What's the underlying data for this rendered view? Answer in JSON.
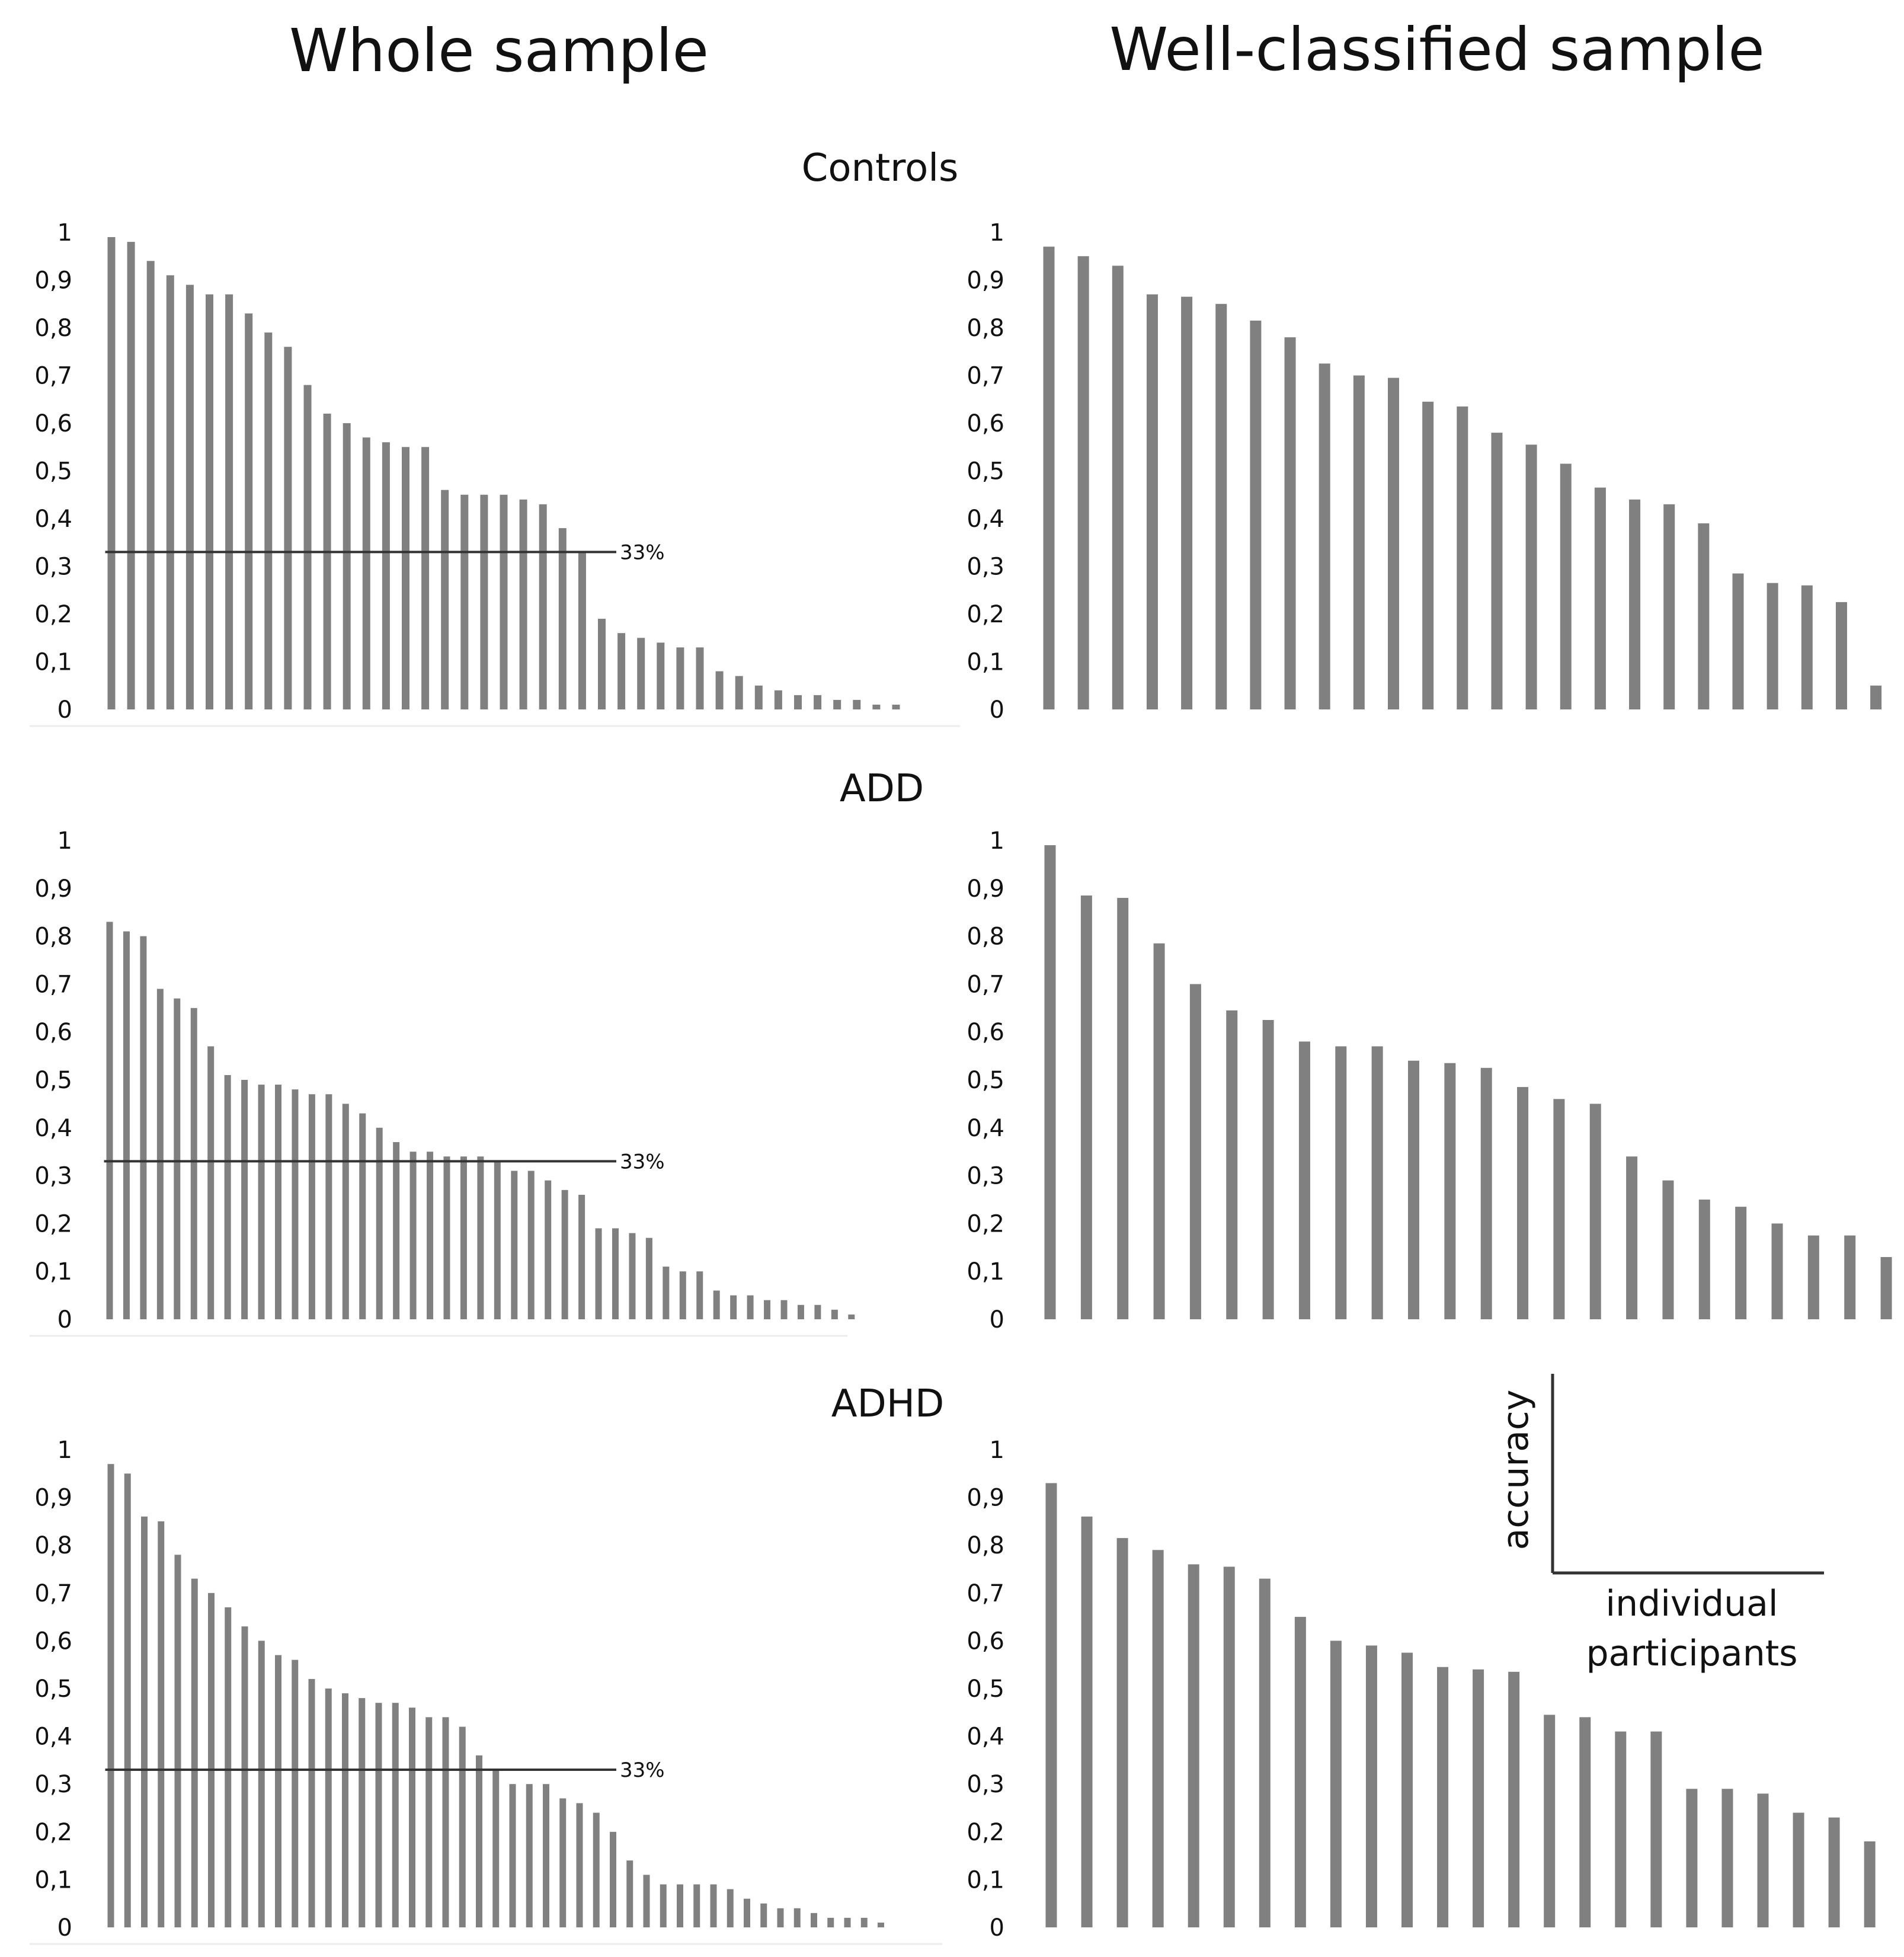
{
  "column_titles": [
    "Whole sample",
    "Well-classified sample"
  ],
  "row_titles": [
    "Controls",
    "ADD",
    "ADHD"
  ],
  "y_ticks": [
    "0",
    "0,1",
    "0,2",
    "0,3",
    "0,4",
    "0,5",
    "0,6",
    "0,7",
    "0,8",
    "0,9",
    "1"
  ],
  "legend": {
    "y_label": "accuracy",
    "x_label_line1": "individual",
    "x_label_line2": "participants"
  },
  "colors": {
    "bar": "#808080",
    "axis": "#333333"
  },
  "chart_data": [
    {
      "type": "bar",
      "title": "Controls",
      "panel": "Whole sample",
      "ylim": [
        0,
        1
      ],
      "reference_line": {
        "value": 0.33,
        "label": "33%"
      },
      "values": [
        0.99,
        0.98,
        0.94,
        0.91,
        0.89,
        0.87,
        0.87,
        0.83,
        0.79,
        0.76,
        0.68,
        0.62,
        0.6,
        0.57,
        0.56,
        0.55,
        0.55,
        0.46,
        0.45,
        0.45,
        0.45,
        0.44,
        0.43,
        0.38,
        0.33,
        0.19,
        0.16,
        0.15,
        0.14,
        0.13,
        0.13,
        0.08,
        0.07,
        0.05,
        0.04,
        0.03,
        0.03,
        0.02,
        0.02,
        0.01,
        0.01
      ]
    },
    {
      "type": "bar",
      "title": "Controls",
      "panel": "Well-classified sample",
      "ylim": [
        0,
        1
      ],
      "values": [
        0.97,
        0.95,
        0.93,
        0.87,
        0.865,
        0.85,
        0.815,
        0.78,
        0.725,
        0.7,
        0.695,
        0.645,
        0.635,
        0.58,
        0.555,
        0.515,
        0.465,
        0.44,
        0.43,
        0.39,
        0.285,
        0.265,
        0.26,
        0.225,
        0.05
      ]
    },
    {
      "type": "bar",
      "title": "ADD",
      "panel": "Whole sample",
      "ylim": [
        0,
        1
      ],
      "reference_line": {
        "value": 0.33,
        "label": "33%"
      },
      "values": [
        0.83,
        0.81,
        0.8,
        0.69,
        0.67,
        0.65,
        0.57,
        0.51,
        0.5,
        0.49,
        0.49,
        0.48,
        0.47,
        0.47,
        0.45,
        0.43,
        0.4,
        0.37,
        0.35,
        0.35,
        0.34,
        0.34,
        0.34,
        0.33,
        0.31,
        0.31,
        0.29,
        0.27,
        0.26,
        0.19,
        0.19,
        0.18,
        0.17,
        0.11,
        0.1,
        0.1,
        0.06,
        0.05,
        0.05,
        0.04,
        0.04,
        0.03,
        0.03,
        0.02,
        0.01
      ]
    },
    {
      "type": "bar",
      "title": "ADD",
      "panel": "Well-classified sample",
      "ylim": [
        0,
        1
      ],
      "values": [
        0.99,
        0.885,
        0.88,
        0.785,
        0.7,
        0.645,
        0.625,
        0.58,
        0.57,
        0.57,
        0.54,
        0.535,
        0.525,
        0.485,
        0.46,
        0.45,
        0.34,
        0.29,
        0.25,
        0.235,
        0.2,
        0.175,
        0.175,
        0.13
      ]
    },
    {
      "type": "bar",
      "title": "ADHD",
      "panel": "Whole sample",
      "ylim": [
        0,
        1
      ],
      "reference_line": {
        "value": 0.33,
        "label": "33%"
      },
      "values": [
        0.97,
        0.95,
        0.86,
        0.85,
        0.78,
        0.73,
        0.7,
        0.67,
        0.63,
        0.6,
        0.57,
        0.56,
        0.52,
        0.5,
        0.49,
        0.48,
        0.47,
        0.47,
        0.46,
        0.44,
        0.44,
        0.42,
        0.36,
        0.33,
        0.3,
        0.3,
        0.3,
        0.27,
        0.26,
        0.24,
        0.2,
        0.14,
        0.11,
        0.09,
        0.09,
        0.09,
        0.09,
        0.08,
        0.06,
        0.05,
        0.04,
        0.04,
        0.03,
        0.02,
        0.02,
        0.02,
        0.01
      ]
    },
    {
      "type": "bar",
      "title": "ADHD",
      "panel": "Well-classified sample",
      "ylim": [
        0,
        1
      ],
      "values": [
        0.93,
        0.86,
        0.815,
        0.79,
        0.76,
        0.755,
        0.73,
        0.65,
        0.6,
        0.59,
        0.575,
        0.545,
        0.54,
        0.535,
        0.445,
        0.44,
        0.41,
        0.41,
        0.29,
        0.29,
        0.28,
        0.24,
        0.23,
        0.18
      ]
    }
  ]
}
